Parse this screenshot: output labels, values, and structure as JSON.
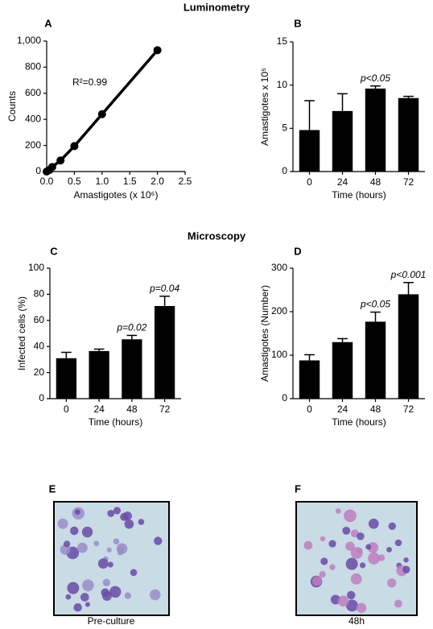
{
  "sections": [
    "Luminometry",
    "Microscopy"
  ],
  "chart_data": [
    {
      "type": "line",
      "label": "A",
      "x": [
        0,
        0.05,
        0.1,
        0.25,
        0.5,
        1,
        2
      ],
      "values": [
        0,
        12,
        35,
        85,
        195,
        440,
        930
      ],
      "color": "#000000",
      "annotation": "R²=0.99",
      "xlabel": "Amastigotes (x 10⁶)",
      "ylabel": "Counts",
      "xlim": [
        0,
        2.5
      ],
      "xticks": [
        {
          "value": 0,
          "label": "0.0"
        },
        0.5,
        {
          "value": 1,
          "label": "1.0"
        },
        1.5,
        {
          "value": 2,
          "label": "2.0"
        },
        2.5
      ],
      "ylim": [
        0,
        1000
      ],
      "yticks": [
        0,
        200,
        400,
        600,
        800,
        {
          "value": 1000,
          "label": "1,000"
        }
      ]
    },
    {
      "type": "bar",
      "label": "B",
      "categories": [
        "0",
        "24",
        "48",
        "72"
      ],
      "values": [
        4.8,
        7.0,
        9.6,
        8.5
      ],
      "errors": [
        3.4,
        2.0,
        0.3,
        0.2
      ],
      "color": "#000000",
      "value_annotations": [
        null,
        null,
        "p<0.05",
        null
      ],
      "xlabel": "Time (hours)",
      "ylabel": "Amastigotes x 10⁵",
      "ylim": [
        0,
        15
      ],
      "yticks": [
        0,
        5,
        10,
        15
      ]
    },
    {
      "type": "bar",
      "label": "C",
      "categories": [
        "0",
        "24",
        "48",
        "72"
      ],
      "values": [
        31,
        36.5,
        45.5,
        71
      ],
      "errors": [
        4.5,
        1.5,
        3,
        7.5
      ],
      "color": "#000000",
      "value_annotations": [
        null,
        null,
        "p=0.02",
        "p=0.04"
      ],
      "xlabel": "Time (hours)",
      "ylabel": "Infected cells (%)",
      "ylim": [
        0,
        100
      ],
      "yticks": [
        0,
        20,
        40,
        60,
        80,
        100
      ]
    },
    {
      "type": "bar",
      "label": "D",
      "categories": [
        "0",
        "24",
        "48",
        "72"
      ],
      "values": [
        88,
        130,
        177,
        240
      ],
      "errors": [
        13,
        8,
        22,
        27
      ],
      "color": "#000000",
      "value_annotations": [
        null,
        null,
        "p<0.05",
        "p<0.001"
      ],
      "xlabel": "Time (hours)",
      "ylabel": "Amastigotes (Number)",
      "ylim": [
        0,
        300
      ],
      "yticks": [
        0,
        100,
        200,
        300
      ]
    }
  ],
  "images": [
    {
      "label": "E",
      "caption": "Pre-culture"
    },
    {
      "label": "F",
      "caption": "48h"
    }
  ]
}
